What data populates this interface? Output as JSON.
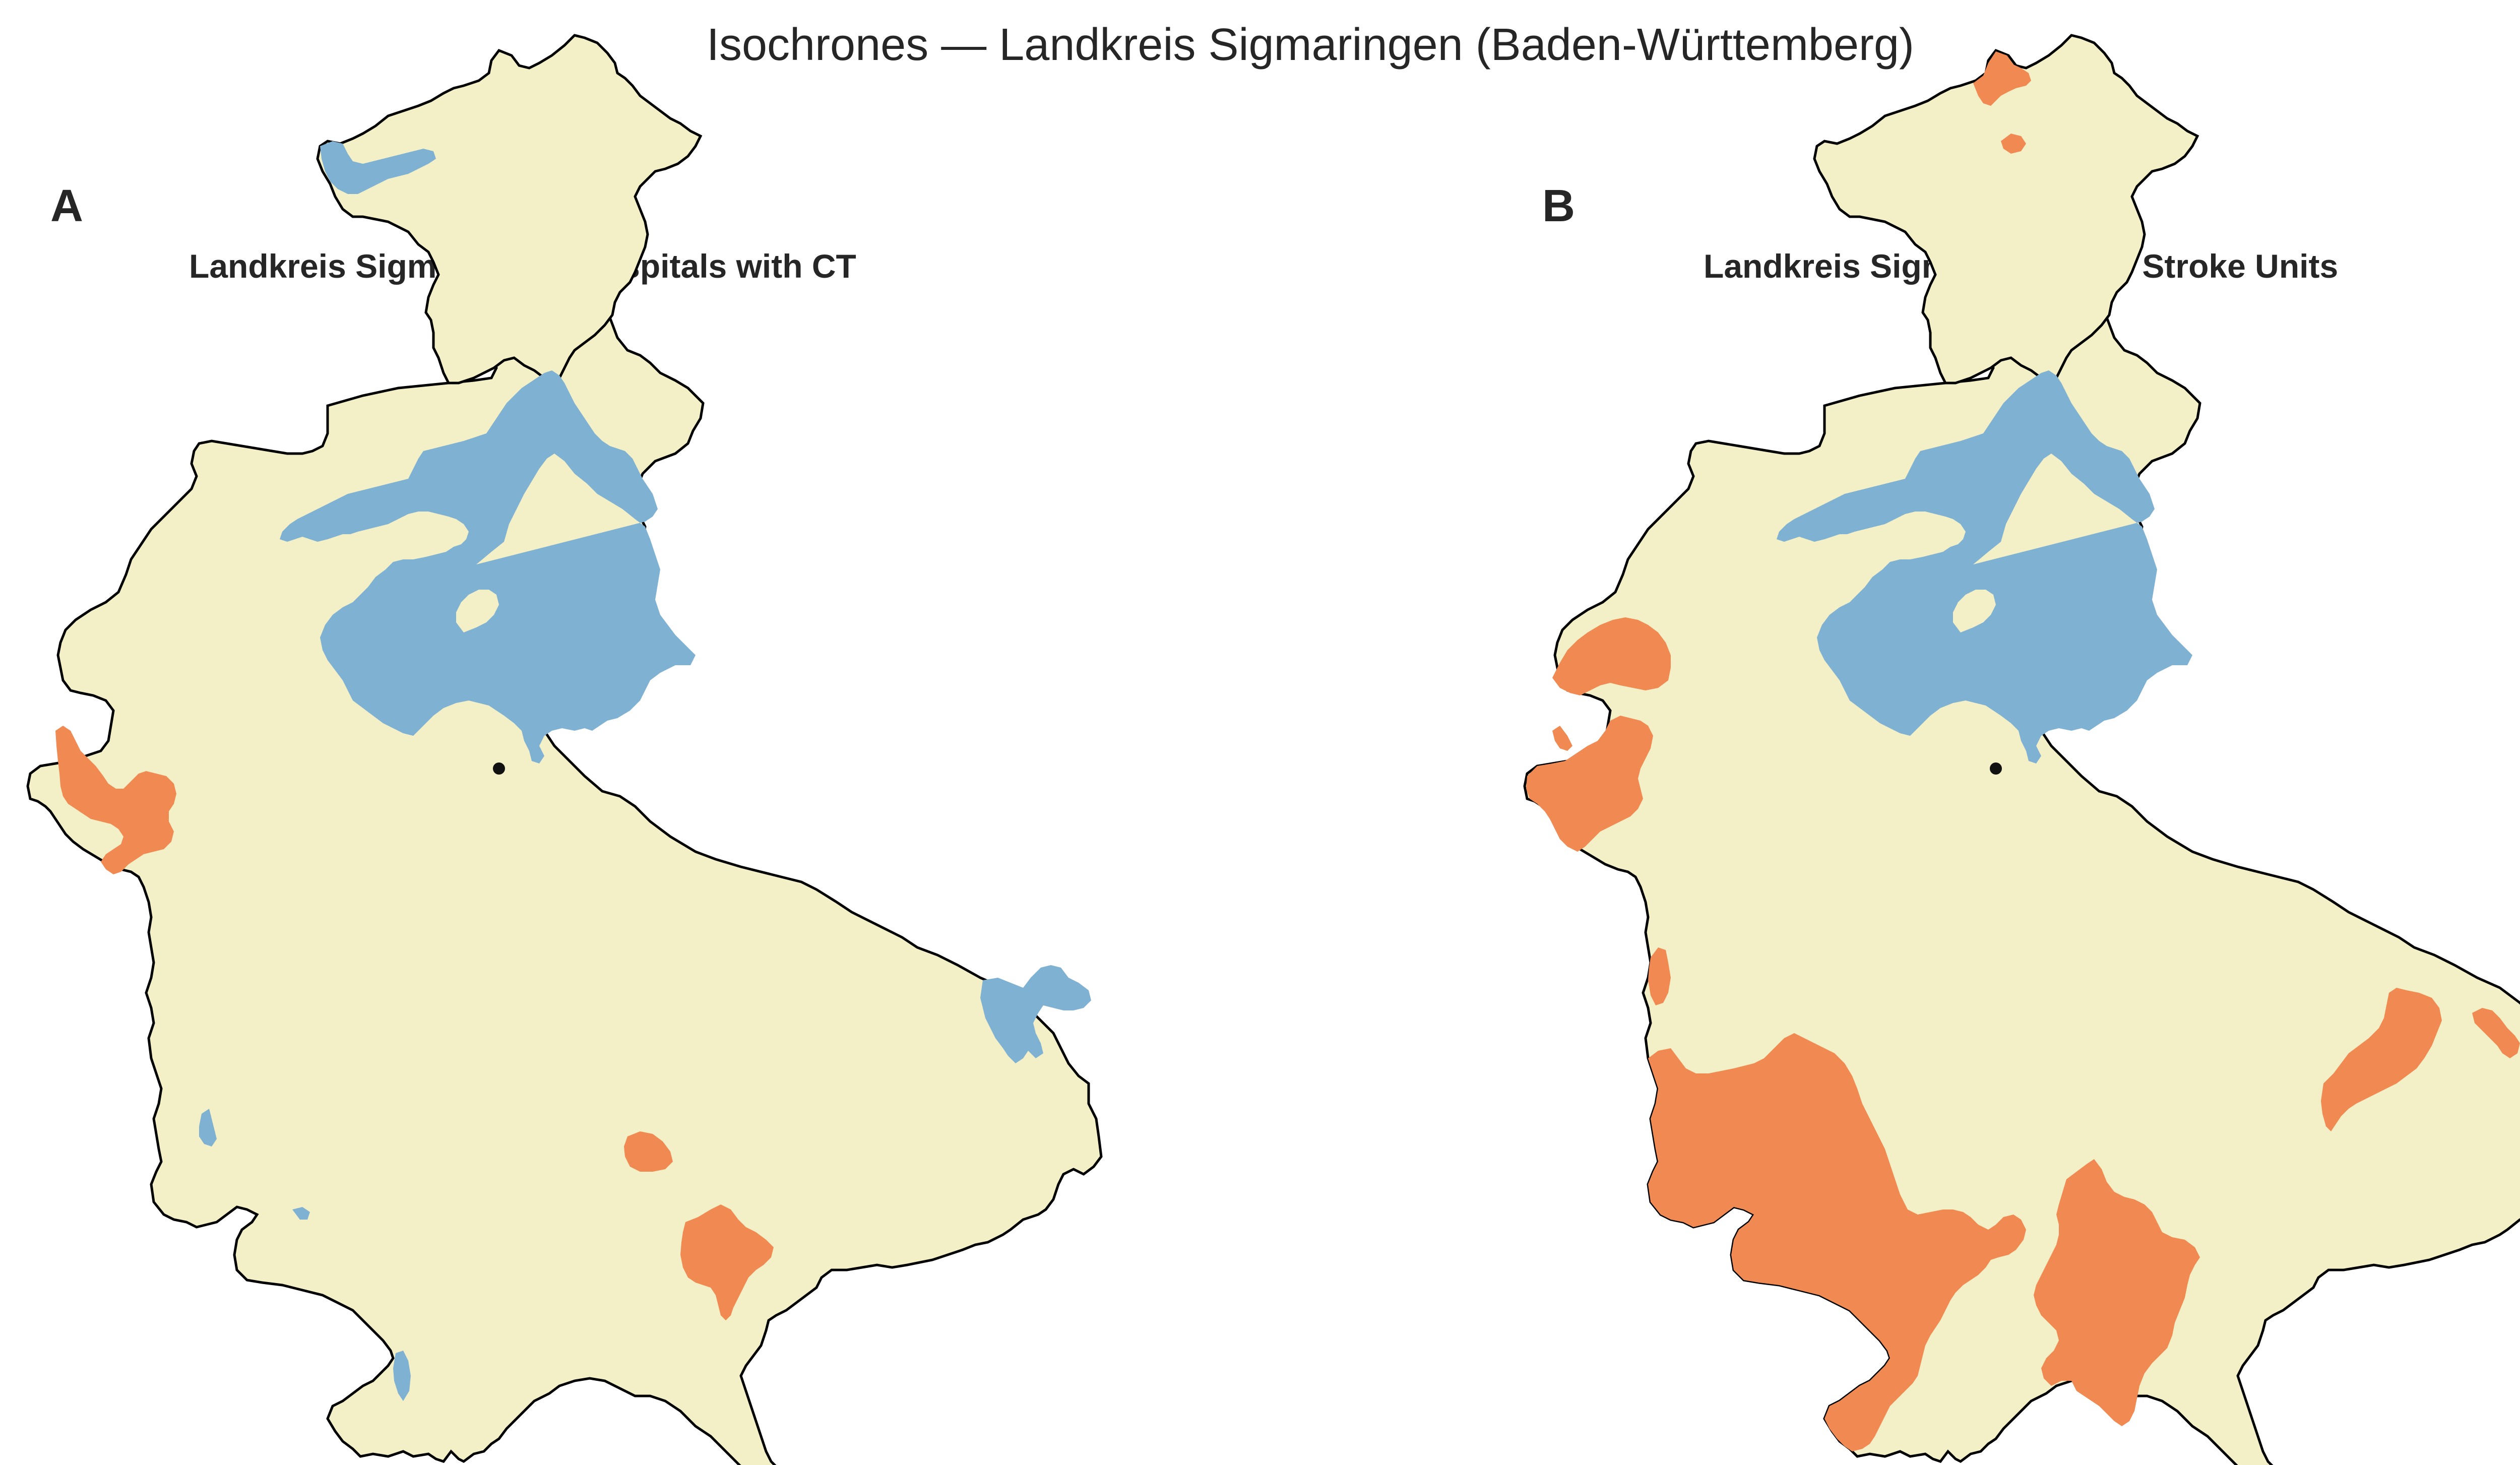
{
  "figure": {
    "title": "Isochrones — Landkreis Sigmaringen (Baden-Württemberg)"
  },
  "colors": {
    "district_fill": "#f3efc6",
    "blue_zone": "#7fb1d3",
    "orange_zone": "#f08a52",
    "outline": "#000000",
    "marker": "#111111"
  },
  "panels": [
    {
      "letter": "A",
      "title": "Landkreis Sigmaringen: Hospitals with CT"
    },
    {
      "letter": "B",
      "title": "Landkreis Sigmaringen: All Stroke Units"
    }
  ]
}
